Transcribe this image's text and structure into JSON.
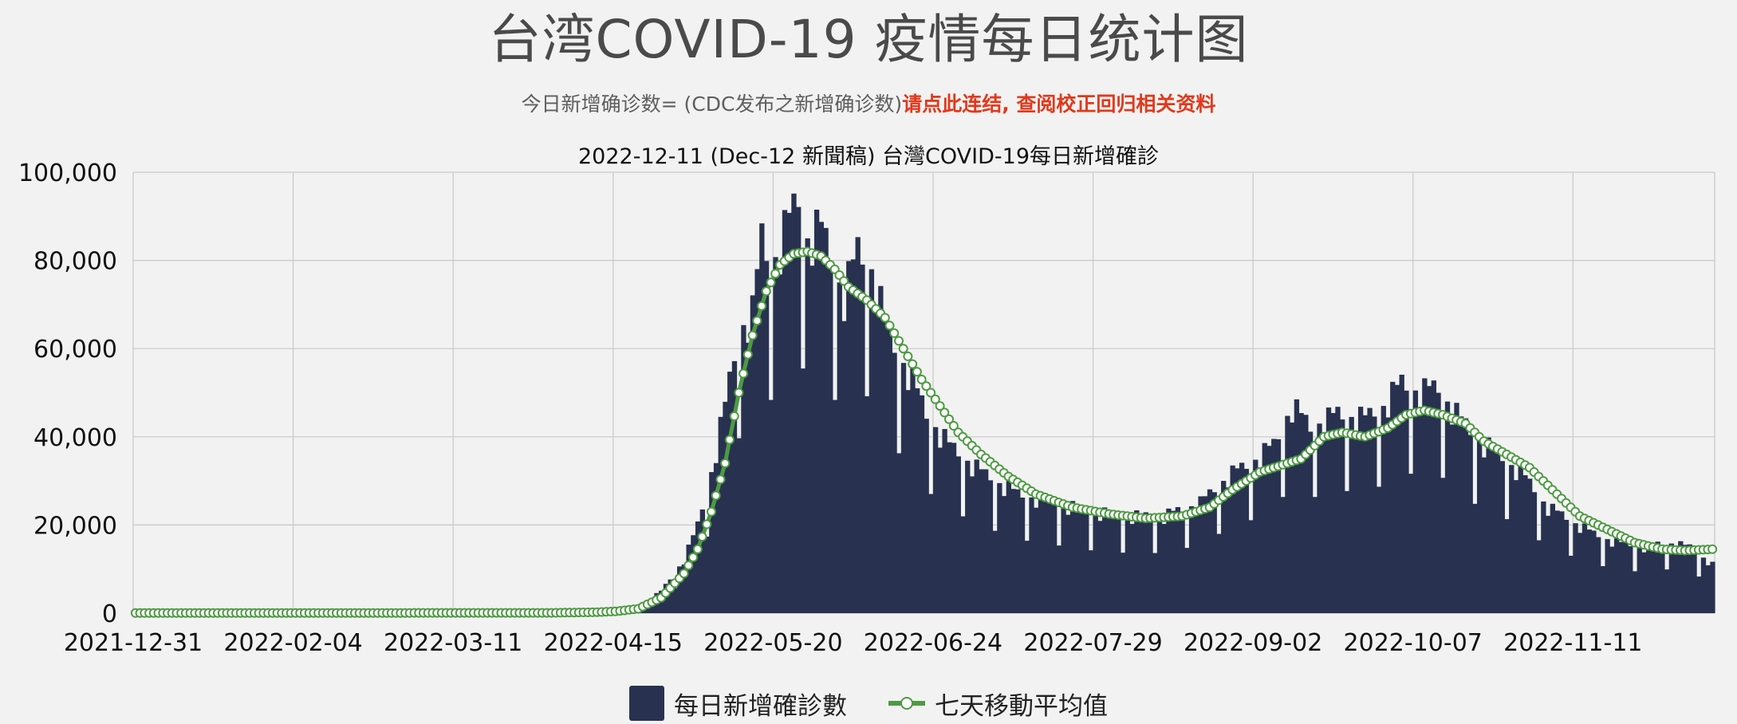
{
  "header": {
    "title": "台湾COVID-19 疫情每日统计图",
    "subtitle_text": "今日新增确诊数= (CDC发布之新增确诊数)",
    "subtitle_link": "请点此连结, 查阅校正回归相关资料"
  },
  "colors": {
    "bar": "#283250",
    "line": "#4e9a43",
    "marker_fill": "#ffffff",
    "grid": "#c8c8c8",
    "background": "#f2f2f2"
  },
  "chart_data": {
    "type": "bar",
    "title": "2022-12-11 (Dec-12 新聞稿) 台灣COVID-19每日新增確診",
    "xlabel": "",
    "ylabel": "",
    "x_start": "2021-12-31",
    "x_end": "2022-12-11",
    "ylim": [
      0,
      100000
    ],
    "yticks": [
      "0",
      "20,000",
      "40,000",
      "60,000",
      "80,000",
      "100,000"
    ],
    "xticks": [
      "2021-12-31",
      "2022-02-04",
      "2022-03-11",
      "2022-04-15",
      "2022-05-20",
      "2022-06-24",
      "2022-07-29",
      "2022-09-02",
      "2022-10-07",
      "2022-11-11"
    ],
    "grid": true,
    "legend_position": "bottom",
    "series": [
      {
        "name": "每日新增確診數",
        "type": "bar",
        "points": [
          [
            "2021-12-31",
            30
          ],
          [
            "2022-04-01",
            100
          ],
          [
            "2022-04-10",
            300
          ],
          [
            "2022-04-15",
            500
          ],
          [
            "2022-04-20",
            1500
          ],
          [
            "2022-04-25",
            5000
          ],
          [
            "2022-04-30",
            12000
          ],
          [
            "2022-05-03",
            20000
          ],
          [
            "2022-05-06",
            32000
          ],
          [
            "2022-05-09",
            47000
          ],
          [
            "2022-05-12",
            64000
          ],
          [
            "2022-05-15",
            68000
          ],
          [
            "2022-05-17",
            85000
          ],
          [
            "2022-05-19",
            78000
          ],
          [
            "2022-05-23",
            89000
          ],
          [
            "2022-05-25",
            94000
          ],
          [
            "2022-05-27",
            85000
          ],
          [
            "2022-05-30",
            87000
          ],
          [
            "2022-06-04",
            72000
          ],
          [
            "2022-06-07",
            82000
          ],
          [
            "2022-06-10",
            78000
          ],
          [
            "2022-06-14",
            62000
          ],
          [
            "2022-06-18",
            55000
          ],
          [
            "2022-06-22",
            45000
          ],
          [
            "2022-06-27",
            38000
          ],
          [
            "2022-07-04",
            32000
          ],
          [
            "2022-07-12",
            27000
          ],
          [
            "2022-07-20",
            25000
          ],
          [
            "2022-07-28",
            23000
          ],
          [
            "2022-08-05",
            22000
          ],
          [
            "2022-08-13",
            22000
          ],
          [
            "2022-08-21",
            25000
          ],
          [
            "2022-08-27",
            31000
          ],
          [
            "2022-09-01",
            34000
          ],
          [
            "2022-09-06",
            38000
          ],
          [
            "2022-09-10",
            47000
          ],
          [
            "2022-09-14",
            42000
          ],
          [
            "2022-09-20",
            45000
          ],
          [
            "2022-09-26",
            44000
          ],
          [
            "2022-09-30",
            47000
          ],
          [
            "2022-10-04",
            52000
          ],
          [
            "2022-10-08",
            50000
          ],
          [
            "2022-10-12",
            51000
          ],
          [
            "2022-10-16",
            45000
          ],
          [
            "2022-10-20",
            40000
          ],
          [
            "2022-10-25",
            36000
          ],
          [
            "2022-10-30",
            32000
          ],
          [
            "2022-11-05",
            24000
          ],
          [
            "2022-11-10",
            21000
          ],
          [
            "2022-11-15",
            18000
          ],
          [
            "2022-11-20",
            16000
          ],
          [
            "2022-11-26",
            15000
          ],
          [
            "2022-12-01",
            16000
          ],
          [
            "2022-12-06",
            15000
          ],
          [
            "2022-12-11",
            11000
          ]
        ]
      },
      {
        "name": "七天移動平均值",
        "type": "line",
        "points": [
          [
            "2021-12-31",
            30
          ],
          [
            "2022-04-01",
            80
          ],
          [
            "2022-04-10",
            200
          ],
          [
            "2022-04-15",
            400
          ],
          [
            "2022-04-20",
            1000
          ],
          [
            "2022-04-25",
            3500
          ],
          [
            "2022-04-30",
            9000
          ],
          [
            "2022-05-03",
            14500
          ],
          [
            "2022-05-06",
            23000
          ],
          [
            "2022-05-09",
            34000
          ],
          [
            "2022-05-12",
            50000
          ],
          [
            "2022-05-15",
            63000
          ],
          [
            "2022-05-18",
            73000
          ],
          [
            "2022-05-21",
            79000
          ],
          [
            "2022-05-24",
            81500
          ],
          [
            "2022-05-27",
            82000
          ],
          [
            "2022-05-30",
            81000
          ],
          [
            "2022-06-02",
            78000
          ],
          [
            "2022-06-05",
            74000
          ],
          [
            "2022-06-09",
            71000
          ],
          [
            "2022-06-13",
            67000
          ],
          [
            "2022-06-17",
            60000
          ],
          [
            "2022-06-21",
            53000
          ],
          [
            "2022-06-25",
            47000
          ],
          [
            "2022-06-29",
            41000
          ],
          [
            "2022-07-04",
            36000
          ],
          [
            "2022-07-10",
            31000
          ],
          [
            "2022-07-16",
            27000
          ],
          [
            "2022-07-24",
            24000
          ],
          [
            "2022-08-01",
            22500
          ],
          [
            "2022-08-09",
            21500
          ],
          [
            "2022-08-17",
            22000
          ],
          [
            "2022-08-23",
            24000
          ],
          [
            "2022-08-28",
            28000
          ],
          [
            "2022-09-03",
            32000
          ],
          [
            "2022-09-09",
            34000
          ],
          [
            "2022-09-12",
            35000
          ],
          [
            "2022-09-17",
            40000
          ],
          [
            "2022-09-21",
            41000
          ],
          [
            "2022-09-26",
            40000
          ],
          [
            "2022-10-01",
            42000
          ],
          [
            "2022-10-05",
            45000
          ],
          [
            "2022-10-09",
            46000
          ],
          [
            "2022-10-13",
            45000
          ],
          [
            "2022-10-18",
            43000
          ],
          [
            "2022-10-22",
            39000
          ],
          [
            "2022-10-27",
            36000
          ],
          [
            "2022-11-01",
            33000
          ],
          [
            "2022-11-06",
            28000
          ],
          [
            "2022-11-12",
            22000
          ],
          [
            "2022-11-18",
            19000
          ],
          [
            "2022-11-24",
            16000
          ],
          [
            "2022-11-30",
            14500
          ],
          [
            "2022-12-05",
            14200
          ],
          [
            "2022-12-11",
            14500
          ]
        ]
      }
    ]
  }
}
